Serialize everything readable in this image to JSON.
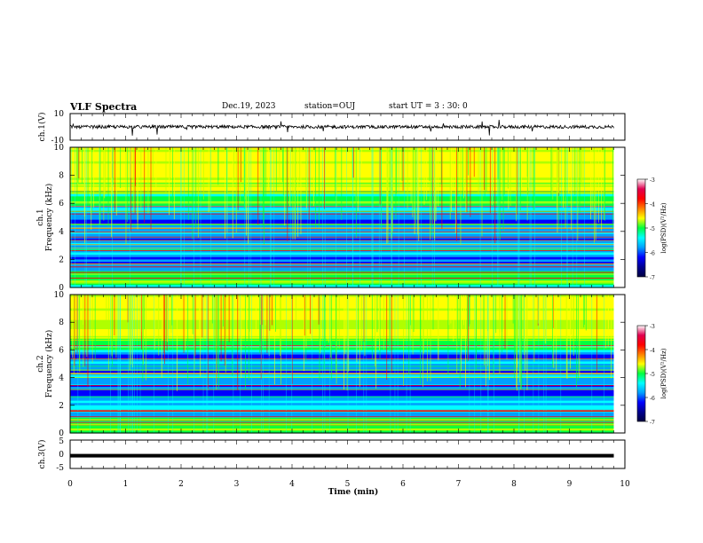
{
  "header": {
    "title": "VLF Spectra",
    "date": "Dec.19, 2023",
    "station": "station=OUJ",
    "start": "start  UT =  3 : 30: 0"
  },
  "chart_data": [
    {
      "type": "line",
      "panel": "ch1-waveform",
      "ylabel": "ch.1(V)",
      "ylim": [
        -10,
        10
      ],
      "y_ticks": [
        "10",
        "-10"
      ],
      "xlim": [
        0,
        10
      ],
      "trace_end_min": 9.8,
      "baseline_V": 0,
      "color": "#000000"
    },
    {
      "type": "heatmap",
      "panel": "ch1-spectrogram",
      "ylabel": "ch.1\nFrequency (kHz)",
      "ylabel_lines": [
        "ch.1",
        "Frequency (kHz)"
      ],
      "y_ticks": [
        "0",
        "2",
        "4",
        "6",
        "8",
        "10"
      ],
      "ylim": [
        0,
        10
      ],
      "xlim": [
        0,
        10
      ],
      "data_end_min": 9.8,
      "colorbar": {
        "label": "log(PSD)(V²/Hz)",
        "ticks": [
          "-3",
          "-4",
          "-5",
          "-6",
          "-7"
        ],
        "range": [
          -7,
          -3
        ]
      }
    },
    {
      "type": "heatmap",
      "panel": "ch2-spectrogram",
      "ylabel": "ch.2\nFrequency (kHz)",
      "ylabel_lines": [
        "ch.2",
        "Frequency (kHz)"
      ],
      "y_ticks": [
        "0",
        "2",
        "4",
        "6",
        "8",
        "10"
      ],
      "ylim": [
        0,
        10
      ],
      "xlim": [
        0,
        10
      ],
      "data_end_min": 9.8,
      "colorbar": {
        "label": "log(PSD)(V²/Hz)",
        "ticks": [
          "-3",
          "-4",
          "-5",
          "-6",
          "-7"
        ],
        "range": [
          -7,
          -3
        ]
      }
    },
    {
      "type": "line",
      "panel": "ch3-waveform",
      "ylabel": "ch.3(V)",
      "ylim": [
        -5,
        5
      ],
      "y_ticks": [
        "5",
        "0",
        "-5"
      ],
      "xlim": [
        0,
        10
      ],
      "trace_end_min": 9.8,
      "baseline_V": -0.5,
      "color": "#000000"
    }
  ],
  "x_axis": {
    "label": "Time (min)",
    "ticks": [
      "0",
      "1",
      "2",
      "3",
      "4",
      "5",
      "6",
      "7",
      "8",
      "9",
      "10"
    ],
    "xlim": [
      0,
      10
    ]
  },
  "colors": {
    "colormap": [
      "#000090",
      "#0000ff",
      "#00a0ff",
      "#00ffff",
      "#00ff40",
      "#b0ff00",
      "#ffff00",
      "#ff8000",
      "#ff0000",
      "#e00050",
      "#ffffff"
    ],
    "axis": "#000000"
  }
}
